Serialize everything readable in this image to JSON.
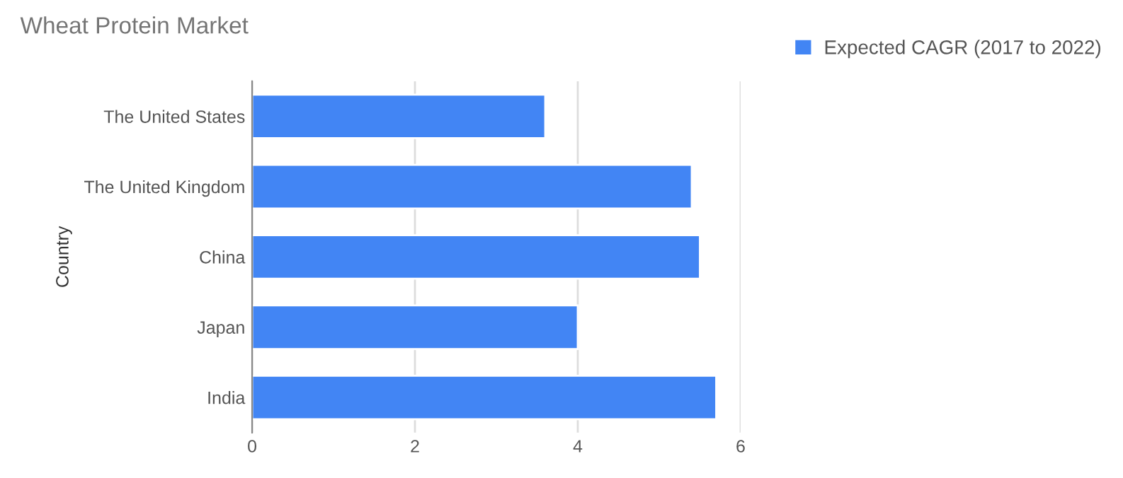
{
  "chart_data": {
    "type": "bar",
    "orientation": "horizontal",
    "title": "Wheat Protein Market",
    "ylabel": "Country",
    "categories": [
      "The United States",
      "The United Kingdom",
      "China",
      "Japan",
      "India"
    ],
    "series": [
      {
        "name": "Expected CAGR (2017 to 2022)",
        "color": "#4285f4",
        "values": [
          3.6,
          5.4,
          5.5,
          4.0,
          5.7
        ]
      }
    ],
    "xlim": [
      0,
      6
    ],
    "xticks": [
      0,
      2,
      4,
      6
    ],
    "grid": "x",
    "legend": "top right"
  }
}
